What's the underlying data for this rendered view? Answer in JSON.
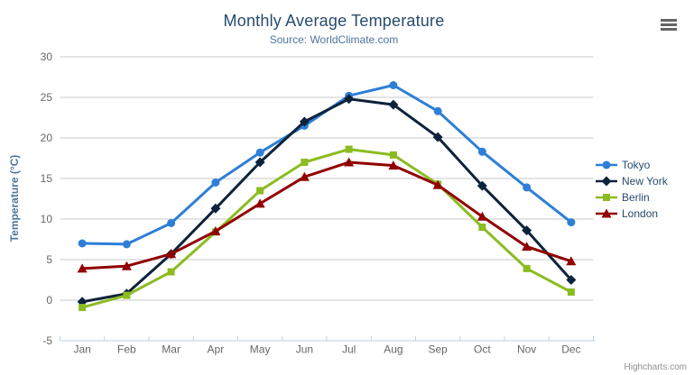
{
  "chart_data": {
    "type": "line",
    "title": "Monthly Average Temperature",
    "subtitle": "Source: WorldClimate.com",
    "credits": "Highcharts.com",
    "categories": [
      "Jan",
      "Feb",
      "Mar",
      "Apr",
      "May",
      "Jun",
      "Jul",
      "Aug",
      "Sep",
      "Oct",
      "Nov",
      "Dec"
    ],
    "xlabel": "",
    "ylabel": "Temperature (°C)",
    "ylim": [
      -5,
      30
    ],
    "ytick_interval": 5,
    "grid": true,
    "legend_position": "right",
    "series": [
      {
        "name": "Tokyo",
        "color": "#2f7ed8",
        "marker": "circle",
        "values": [
          7.0,
          6.9,
          9.5,
          14.5,
          18.2,
          21.5,
          25.2,
          26.5,
          23.3,
          18.3,
          13.9,
          9.6
        ]
      },
      {
        "name": "New York",
        "color": "#0d233a",
        "marker": "diamond",
        "values": [
          -0.2,
          0.8,
          5.7,
          11.3,
          17.0,
          22.0,
          24.8,
          24.1,
          20.1,
          14.1,
          8.6,
          2.5
        ]
      },
      {
        "name": "Berlin",
        "color": "#8bbc21",
        "marker": "square",
        "values": [
          -0.9,
          0.6,
          3.5,
          8.4,
          13.5,
          17.0,
          18.6,
          17.9,
          14.3,
          9.0,
          3.9,
          1.0
        ]
      },
      {
        "name": "London",
        "color": "#910000",
        "marker": "triangle",
        "values": [
          3.9,
          4.2,
          5.7,
          8.5,
          11.9,
          15.2,
          17.0,
          16.6,
          14.2,
          10.3,
          6.6,
          4.8
        ]
      }
    ],
    "ui_colors": {
      "title": "#274b6d",
      "subtitle": "#4d759e",
      "axis_title": "#4d759e",
      "tick_label": "#666666",
      "grid_line": "#c9c9c9",
      "axis_line": "#c0d0e0",
      "legend_text": "#274b6d",
      "credits": "#8f8f8f"
    }
  }
}
